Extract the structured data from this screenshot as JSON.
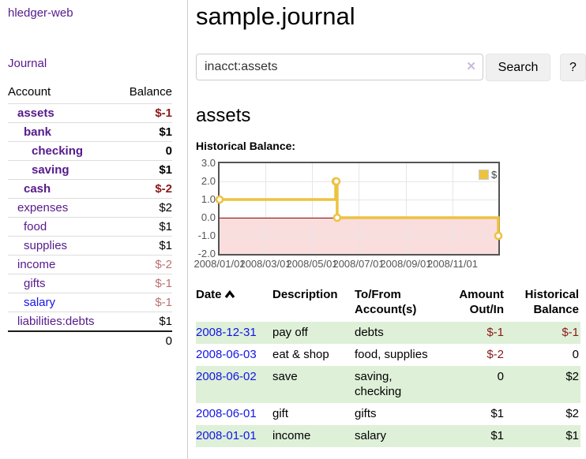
{
  "colors": {
    "purple": "#551a8b",
    "blue": "#1414e8",
    "negative": "#8b1a1a",
    "negative_muted": "#bb7272",
    "row_green": "#def0d8",
    "chart_line": "#edc240",
    "chart_negative_fill": "#fadddd",
    "zero_line": "#8b0000",
    "grid": "#e6e6e6",
    "chart_border": "#545454",
    "axis_text": "#545454",
    "button_bg": "#f0f0f0",
    "input_border": "#cccccc",
    "clear_x": "#c9bade",
    "divider": "#cccccc",
    "separator": "#dddddd"
  },
  "sidebar": {
    "app_title": "hledger-web",
    "journal_link": "Journal",
    "accounts_header": {
      "account": "Account",
      "balance": "Balance"
    },
    "accounts": [
      {
        "name": "assets",
        "balance": "$-1",
        "indent": 1,
        "bold": true,
        "negative": "strong"
      },
      {
        "name": "bank",
        "balance": "$1",
        "indent": 2,
        "bold": true,
        "negative": null
      },
      {
        "name": "checking",
        "balance": "0",
        "indent": 3,
        "bold": true,
        "negative": null
      },
      {
        "name": "saving",
        "balance": "$1",
        "indent": 3,
        "bold": true,
        "negative": null
      },
      {
        "name": "cash",
        "balance": "$-2",
        "indent": 2,
        "bold": true,
        "negative": "strong"
      },
      {
        "name": "expenses",
        "balance": "$2",
        "indent": 1,
        "bold": false,
        "negative": null
      },
      {
        "name": "food",
        "balance": "$1",
        "indent": 2,
        "bold": false,
        "negative": null
      },
      {
        "name": "supplies",
        "balance": "$1",
        "indent": 2,
        "bold": false,
        "negative": null
      },
      {
        "name": "income",
        "balance": "$-2",
        "indent": 1,
        "bold": false,
        "negative": "muted"
      },
      {
        "name": "gifts",
        "balance": "$-1",
        "indent": 2,
        "bold": false,
        "negative": "muted"
      },
      {
        "name": "salary",
        "balance": "$-1",
        "indent": 2,
        "bold": false,
        "negative": "muted",
        "link_color": "blue"
      },
      {
        "name": "liabilities:debts",
        "balance": "$1",
        "indent": 1,
        "bold": false,
        "negative": null
      }
    ],
    "total": "0"
  },
  "header": {
    "title": "sample.journal"
  },
  "search": {
    "value": "inacct:assets",
    "clear_icon": "✕",
    "button_label": "Search",
    "help_label": "?"
  },
  "main": {
    "account_heading": "assets",
    "chart_label": "Historical Balance:"
  },
  "chart_data": {
    "type": "line",
    "step": true,
    "title": "Historical Balance",
    "xlim": [
      "2008-01-01",
      "2008-12-31"
    ],
    "ylim": [
      -2,
      3
    ],
    "series": [
      {
        "name": "$",
        "color": "#edc240",
        "points": [
          [
            "2008-01-01",
            1
          ],
          [
            "2008-06-01",
            2
          ],
          [
            "2008-06-02",
            2
          ],
          [
            "2008-06-03",
            0
          ],
          [
            "2008-12-31",
            -1
          ]
        ]
      }
    ],
    "y_ticks": [
      {
        "v": 3,
        "label": "3.0"
      },
      {
        "v": 2,
        "label": "2.0"
      },
      {
        "v": 1,
        "label": "1.0"
      },
      {
        "v": 0,
        "label": "0.0"
      },
      {
        "v": -1,
        "label": "-1.0"
      },
      {
        "v": -2,
        "label": "-2.0"
      }
    ],
    "x_ticks": [
      {
        "date": "2008-01-01",
        "label": "2008/01/01"
      },
      {
        "date": "2008-03-01",
        "label": "2008/03/01"
      },
      {
        "date": "2008-05-01",
        "label": "2008/05/01"
      },
      {
        "date": "2008-07-01",
        "label": "2008/07/01"
      },
      {
        "date": "2008-09-01",
        "label": "2008/09/01"
      },
      {
        "date": "2008-11-01",
        "label": "2008/11/01"
      }
    ],
    "legend": {
      "label": "$",
      "position": "top-right"
    },
    "negative_region_shaded": true,
    "grid": true
  },
  "register": {
    "columns": {
      "date": "Date",
      "description": "Description",
      "accounts1": "To/From",
      "accounts2": "Account(s)",
      "amount1": "Amount",
      "amount2": "Out/In",
      "balance1": "Historical",
      "balance2": "Balance"
    },
    "rows": [
      {
        "date": "2008-12-31",
        "description": "pay off",
        "accounts": "debts",
        "amount": "$-1",
        "amount_negative": true,
        "balance": "$-1",
        "balance_negative": true
      },
      {
        "date": "2008-06-03",
        "description": "eat & shop",
        "accounts": "food, supplies",
        "amount": "$-2",
        "amount_negative": true,
        "balance": "0",
        "balance_negative": false
      },
      {
        "date": "2008-06-02",
        "description": "save",
        "accounts": "saving, checking",
        "amount": "0",
        "amount_negative": false,
        "balance": "$2",
        "balance_negative": false
      },
      {
        "date": "2008-06-01",
        "description": "gift",
        "accounts": "gifts",
        "amount": "$1",
        "amount_negative": false,
        "balance": "$2",
        "balance_negative": false
      },
      {
        "date": "2008-01-01",
        "description": "income",
        "accounts": "salary",
        "amount": "$1",
        "amount_negative": false,
        "balance": "$1",
        "balance_negative": false
      }
    ]
  }
}
